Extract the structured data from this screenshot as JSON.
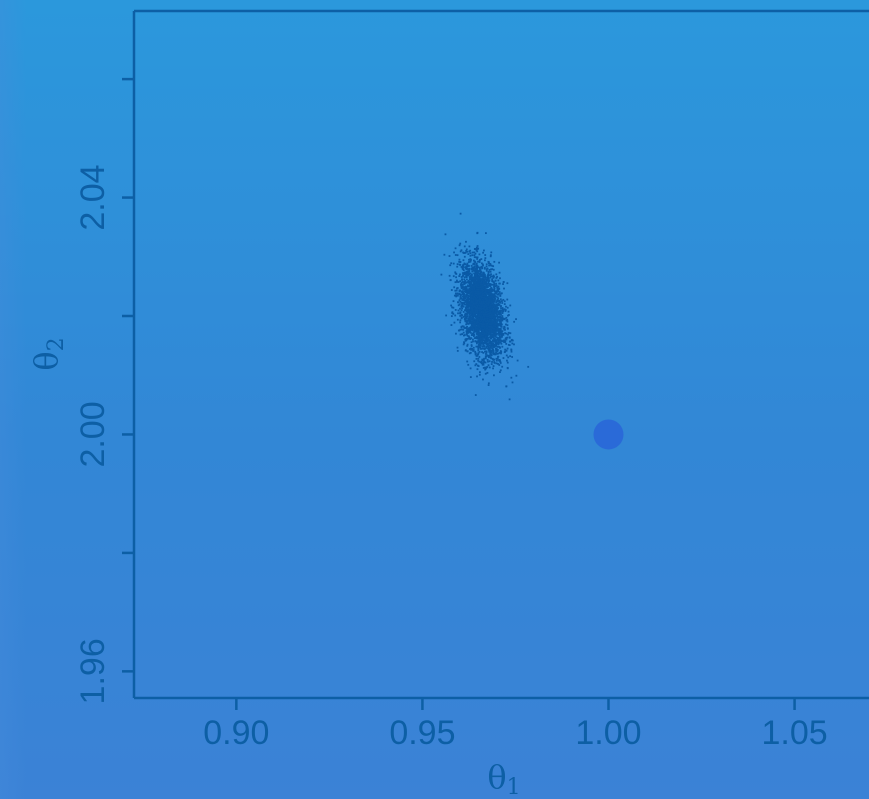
{
  "chart_data": {
    "type": "scatter",
    "title": "",
    "xlabel": "θ1",
    "ylabel": "θ2",
    "xlabel_symbol": "θ",
    "xlabel_subscript": "1",
    "ylabel_symbol": "θ",
    "ylabel_subscript": "2",
    "xlim": [
      0.8725,
      1.07
    ],
    "ylim": [
      1.9555,
      2.0715
    ],
    "x_ticks": [
      0.9,
      0.95,
      1.0,
      1.05
    ],
    "x_tick_labels": [
      "0.90",
      "0.95",
      "1.00",
      "1.05"
    ],
    "y_ticks": [
      1.96,
      1.98,
      2.0,
      2.02,
      2.04,
      2.06
    ],
    "y_tick_labels": [
      "1.96",
      "",
      "2.00",
      "",
      "2.04",
      ""
    ],
    "grid": false,
    "series": [
      {
        "role": "samples",
        "color": "#0a5aa6",
        "center": [
          0.966,
          2.021
        ],
        "sd": [
          0.0029,
          0.0041
        ]
      },
      {
        "role": "true value",
        "color": "#2a6ad8",
        "x": [
          1.0
        ],
        "y": [
          2.0
        ]
      }
    ]
  },
  "colors": {
    "axis": "#0d5fa5",
    "text": "#0d5fa5",
    "samples": "#0a5aa6",
    "true_point": "#2a6ad8"
  }
}
